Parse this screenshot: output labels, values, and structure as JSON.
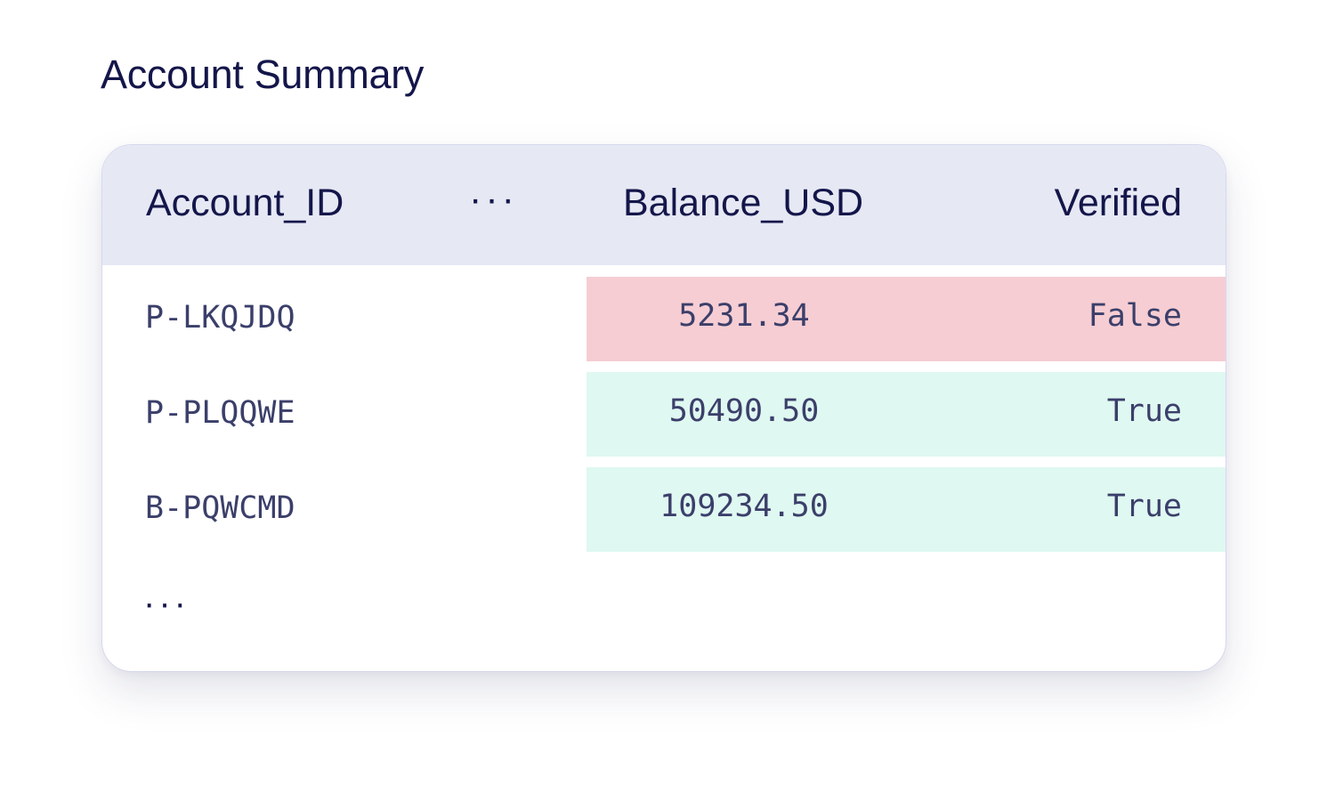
{
  "title": "Account Summary",
  "table": {
    "columns": [
      "Account_ID",
      "···",
      "Balance_USD",
      "Verified"
    ],
    "rows": [
      {
        "account_id": "P-LKQJDQ",
        "balance": "5231.34",
        "verified": "False"
      },
      {
        "account_id": "P-PLQQWE",
        "balance": "50490.50",
        "verified": "True"
      },
      {
        "account_id": "B-PQWCMD",
        "balance": "109234.50",
        "verified": "True"
      }
    ],
    "more_rows": "···"
  },
  "colors": {
    "header_bg": "#e6e8f4",
    "false_highlight": "#f6cdd3",
    "true_highlight": "#dff8f1",
    "title_text": "#14164a"
  }
}
